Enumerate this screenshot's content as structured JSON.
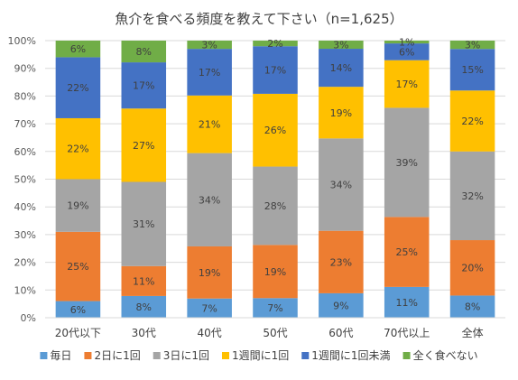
{
  "chart_data": {
    "type": "bar",
    "stacked": true,
    "percent": true,
    "title": "魚介を食べる頻度を教えて下さい（n=1,625）",
    "categories": [
      "20代以下",
      "30代",
      "40代",
      "50代",
      "60代",
      "70代以上",
      "全体"
    ],
    "ylim": [
      0,
      100
    ],
    "yticks": [
      "0%",
      "10%",
      "20%",
      "30%",
      "40%",
      "50%",
      "60%",
      "70%",
      "80%",
      "90%",
      "100%"
    ],
    "grid": true,
    "legend_position": "bottom",
    "series": [
      {
        "name": "毎日",
        "color": "#5b9bd5",
        "values": [
          6,
          8,
          7,
          7,
          9,
          11,
          8
        ],
        "labels": [
          "6%",
          "8%",
          "7%",
          "7%",
          "9%",
          "11%",
          "8%"
        ]
      },
      {
        "name": "2日に1回",
        "color": "#ed7d31",
        "values": [
          25,
          11,
          19,
          19,
          23,
          25,
          20
        ],
        "labels": [
          "25%",
          "11%",
          "19%",
          "19%",
          "23%",
          "25%",
          "20%"
        ]
      },
      {
        "name": "3日に1回",
        "color": "#a5a5a5",
        "values": [
          19,
          31,
          34,
          28,
          34,
          39,
          32
        ],
        "labels": [
          "19%",
          "31%",
          "34%",
          "28%",
          "34%",
          "39%",
          "32%"
        ]
      },
      {
        "name": "1週間に1回",
        "color": "#ffc000",
        "values": [
          22,
          27,
          21,
          26,
          19,
          17,
          22
        ],
        "labels": [
          "22%",
          "27%",
          "21%",
          "26%",
          "19%",
          "17%",
          "22%"
        ]
      },
      {
        "name": "1週間に1回未満",
        "color": "#4472c4",
        "values": [
          22,
          17,
          17,
          17,
          14,
          6,
          15
        ],
        "labels": [
          "22%",
          "17%",
          "17%",
          "17%",
          "14%",
          "6%",
          "15%"
        ]
      },
      {
        "name": "全く食べない",
        "color": "#70ad47",
        "values": [
          6,
          8,
          3,
          2,
          3,
          1,
          3
        ],
        "labels": [
          "6%",
          "8%",
          "3%",
          "2%",
          "3%",
          "1%",
          "3%"
        ]
      }
    ]
  }
}
